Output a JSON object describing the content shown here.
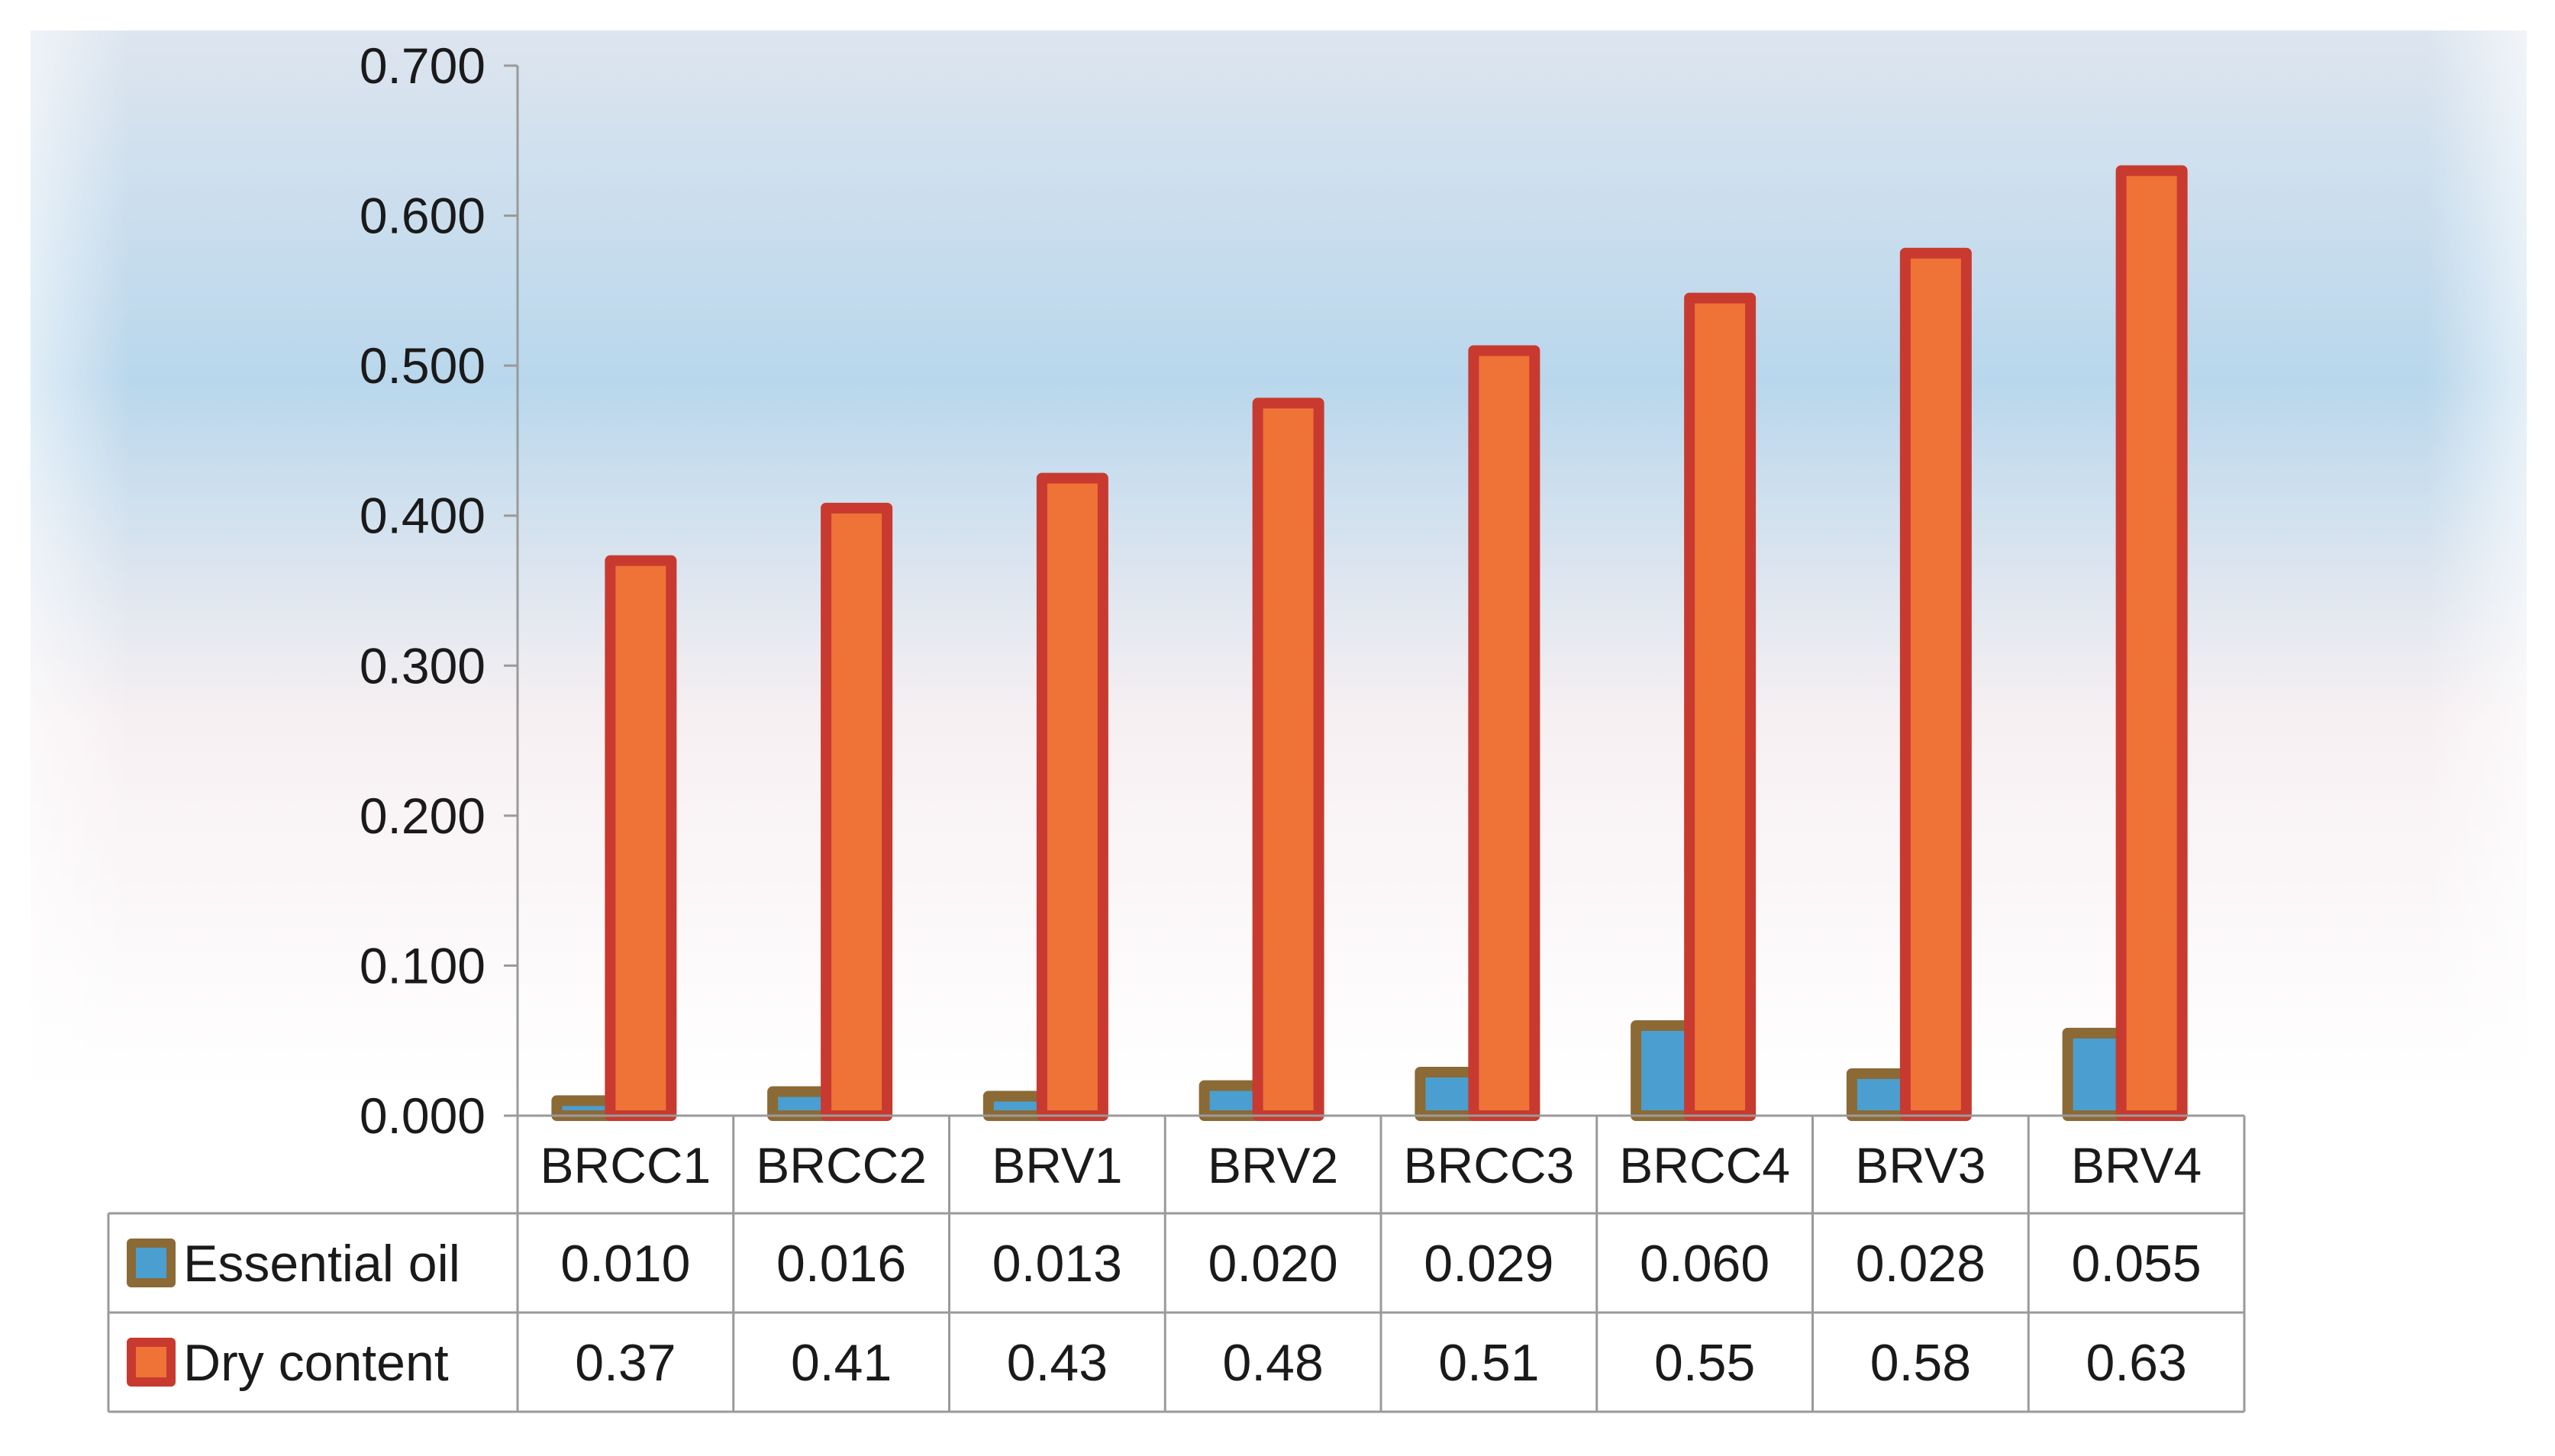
{
  "chart_data": {
    "type": "bar",
    "title": "",
    "xlabel": "",
    "ylabel": "",
    "ylim": [
      0,
      0.7
    ],
    "yticks": [
      "0.000",
      "0.100",
      "0.200",
      "0.300",
      "0.400",
      "0.500",
      "0.600",
      "0.700"
    ],
    "ytick_values": [
      0,
      0.1,
      0.2,
      0.3,
      0.4,
      0.5,
      0.6,
      0.7
    ],
    "categories": [
      "BRCC1",
      "BRCC2",
      "BRV1",
      "BRV2",
      "BRCC3",
      "BRCC4",
      "BRV3",
      "BRV4"
    ],
    "series": [
      {
        "name": "Essential oil",
        "values": [
          0.01,
          0.016,
          0.013,
          0.02,
          0.029,
          0.06,
          0.028,
          0.055
        ],
        "table_values": [
          "0.010",
          "0.016",
          "0.013",
          "0.020",
          "0.029",
          "0.060",
          "0.028",
          "0.055"
        ],
        "fill": "#4a9fd0",
        "border": "#8b6a36"
      },
      {
        "name": "Dry content",
        "values": [
          0.37,
          0.405,
          0.425,
          0.475,
          0.51,
          0.545,
          0.575,
          0.63
        ],
        "table_values": [
          "0.37",
          "0.41",
          "0.43",
          "0.48",
          "0.51",
          "0.55",
          "0.58",
          "0.63"
        ],
        "fill": "#ef7237",
        "border": "#c83a2f"
      }
    ],
    "data_table": true,
    "grid": false,
    "legend": "data-table"
  },
  "colors": {
    "plot_bg_top": "#dde5ef",
    "plot_bg_mid": "#b9d7ec",
    "plot_bg_low": "#f7f0f2",
    "axis": "#9a9a9a",
    "table_line": "#9a9a9a"
  }
}
